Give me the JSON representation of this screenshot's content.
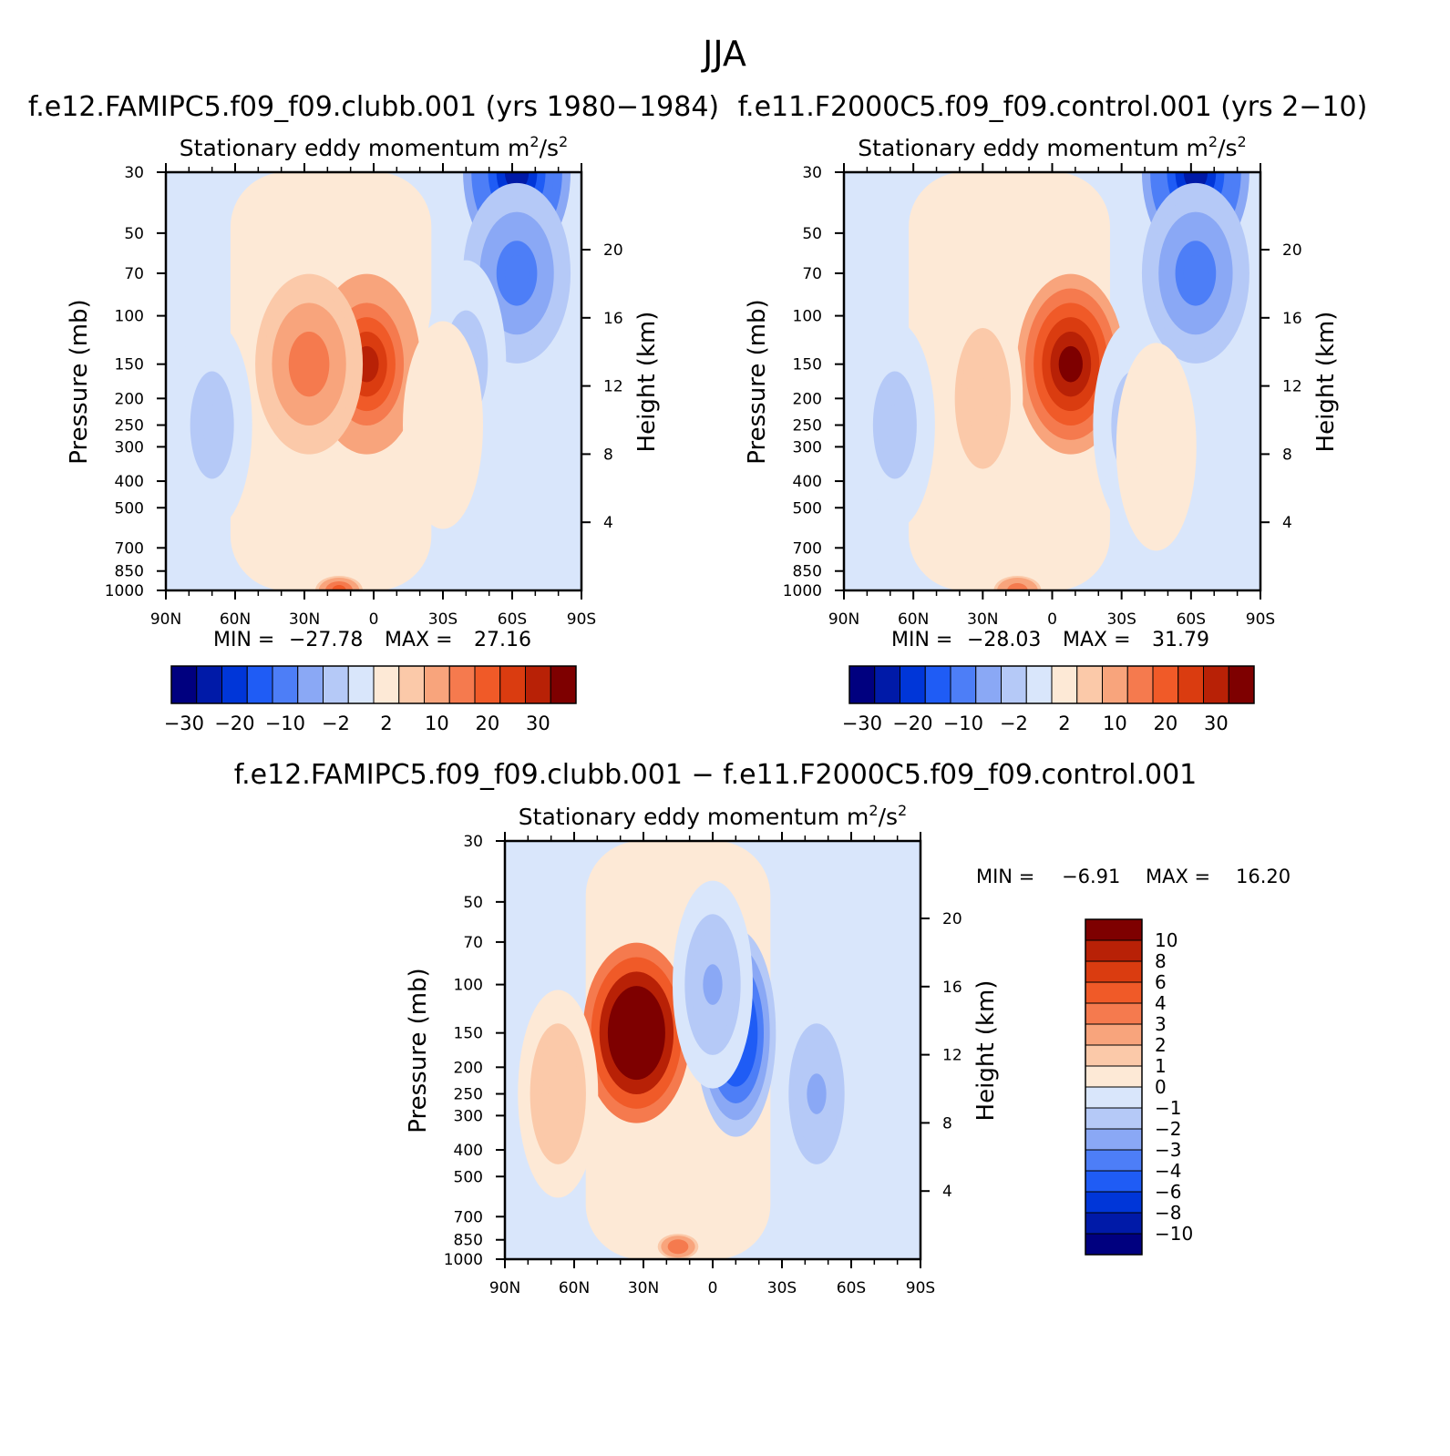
{
  "page_title": "JJA",
  "chart_data": [
    {
      "type": "heatmap",
      "title": "f.e12.FAMIPC5.f09_f09.clubb.001 (yrs 1980−1984)",
      "subtitle": "Stationary eddy momentum",
      "units_base": "m",
      "units_sup1": "2",
      "units_sep": "/s",
      "units_sup2": "2",
      "ylabel": "Pressure (mb)",
      "ylabel_right": "Height (km)",
      "x_tick_labels": [
        "90N",
        "60N",
        "30N",
        "0",
        "30S",
        "60S",
        "90S"
      ],
      "x_range": [
        90,
        -90
      ],
      "y_tick_labels": [
        "30",
        "50",
        "70",
        "100",
        "150",
        "200",
        "250",
        "300",
        "400",
        "500",
        "700",
        "850",
        "1000"
      ],
      "y_range": [
        30,
        1000
      ],
      "y_scale": "log",
      "y2_tick_labels": [
        "20",
        "16",
        "12",
        "8",
        "4"
      ],
      "min_label": "MIN =",
      "min_value": "−27.78",
      "max_label": "MAX =",
      "max_value": "27.16",
      "features": [
        {
          "lat": 3,
          "p": 150,
          "value": 27.16
        },
        {
          "lat": 28,
          "p": 150,
          "value": 12
        },
        {
          "lat": 15,
          "p": 1000,
          "value": 16
        },
        {
          "lat": -62,
          "p": 30,
          "value": -27.78
        },
        {
          "lat": -62,
          "p": 70,
          "value": -12
        },
        {
          "lat": 70,
          "p": 250,
          "value": -3
        },
        {
          "lat": -40,
          "p": 150,
          "value": -3
        },
        {
          "lat": -30,
          "p": 250,
          "value": 2
        }
      ]
    },
    {
      "type": "heatmap",
      "title": "f.e11.F2000C5.f09_f09.control.001 (yrs 2−10)",
      "subtitle": "Stationary eddy momentum",
      "units_base": "m",
      "units_sup1": "2",
      "units_sep": "/s",
      "units_sup2": "2",
      "ylabel": "Pressure (mb)",
      "ylabel_right": "Height (km)",
      "x_tick_labels": [
        "90N",
        "60N",
        "30N",
        "0",
        "30S",
        "60S",
        "90S"
      ],
      "x_range": [
        90,
        -90
      ],
      "y_tick_labels": [
        "30",
        "50",
        "70",
        "100",
        "150",
        "200",
        "250",
        "300",
        "400",
        "500",
        "700",
        "850",
        "1000"
      ],
      "y_range": [
        30,
        1000
      ],
      "y_scale": "log",
      "y2_tick_labels": [
        "20",
        "16",
        "12",
        "8",
        "4"
      ],
      "min_label": "MIN =",
      "min_value": "−28.03",
      "max_label": "MAX =",
      "max_value": "31.79",
      "features": [
        {
          "lat": -8,
          "p": 150,
          "value": 31.79
        },
        {
          "lat": 30,
          "p": 200,
          "value": 5
        },
        {
          "lat": 15,
          "p": 1000,
          "value": 14
        },
        {
          "lat": -62,
          "p": 30,
          "value": -28.03
        },
        {
          "lat": -62,
          "p": 70,
          "value": -12
        },
        {
          "lat": 68,
          "p": 250,
          "value": -3
        },
        {
          "lat": -35,
          "p": 250,
          "value": -3
        },
        {
          "lat": -45,
          "p": 300,
          "value": 2
        }
      ]
    },
    {
      "type": "heatmap",
      "title": "f.e12.FAMIPC5.f09_f09.clubb.001 − f.e11.F2000C5.f09_f09.control.001",
      "subtitle": "Stationary eddy momentum",
      "units_base": "m",
      "units_sup1": "2",
      "units_sep": "/s",
      "units_sup2": "2",
      "ylabel": "Pressure (mb)",
      "ylabel_right": "Height (km)",
      "x_tick_labels": [
        "90N",
        "60N",
        "30N",
        "0",
        "30S",
        "60S",
        "90S"
      ],
      "x_range": [
        90,
        -90
      ],
      "y_tick_labels": [
        "30",
        "50",
        "70",
        "100",
        "150",
        "200",
        "250",
        "300",
        "400",
        "500",
        "700",
        "850",
        "1000"
      ],
      "y_range": [
        30,
        1000
      ],
      "y_scale": "log",
      "y2_tick_labels": [
        "20",
        "16",
        "12",
        "8",
        "4"
      ],
      "min_label": "MIN =",
      "min_value": "−6.91",
      "max_label": "MAX =",
      "max_value": "16.20",
      "features": [
        {
          "lat": 33,
          "p": 150,
          "value": 16.2
        },
        {
          "lat": -10,
          "p": 150,
          "value": -6.91
        },
        {
          "lat": 67,
          "p": 250,
          "value": 2
        },
        {
          "lat": 0,
          "p": 100,
          "value": -2
        },
        {
          "lat": -45,
          "p": 250,
          "value": -2
        },
        {
          "lat": 15,
          "p": 900,
          "value": 4
        }
      ]
    }
  ],
  "colorbar_abs": {
    "labels": [
      "−30",
      "−20",
      "−10",
      "−2",
      "2",
      "10",
      "20",
      "30"
    ],
    "colors": [
      "#00007f",
      "#001aa8",
      "#0036d8",
      "#1f5cf5",
      "#4d7ef7",
      "#8aa8f5",
      "#b5c9f7",
      "#d9e6fb",
      "#fde9d6",
      "#fbc9a9",
      "#f8a47c",
      "#f57a4e",
      "#f05a28",
      "#da3c10",
      "#b82106",
      "#7e0000"
    ]
  },
  "colorbar_diff": {
    "labels": [
      "10",
      "8",
      "6",
      "4",
      "3",
      "2",
      "1",
      "0",
      "−1",
      "−2",
      "−3",
      "−4",
      "−6",
      "−8",
      "−10"
    ],
    "colors": [
      "#7e0000",
      "#b82106",
      "#da3c10",
      "#f05a28",
      "#f57a4e",
      "#f8a47c",
      "#fbc9a9",
      "#fde9d6",
      "#d9e6fb",
      "#b5c9f7",
      "#8aa8f5",
      "#4d7ef7",
      "#1f5cf5",
      "#0036d8",
      "#001aa8",
      "#00007f"
    ]
  }
}
